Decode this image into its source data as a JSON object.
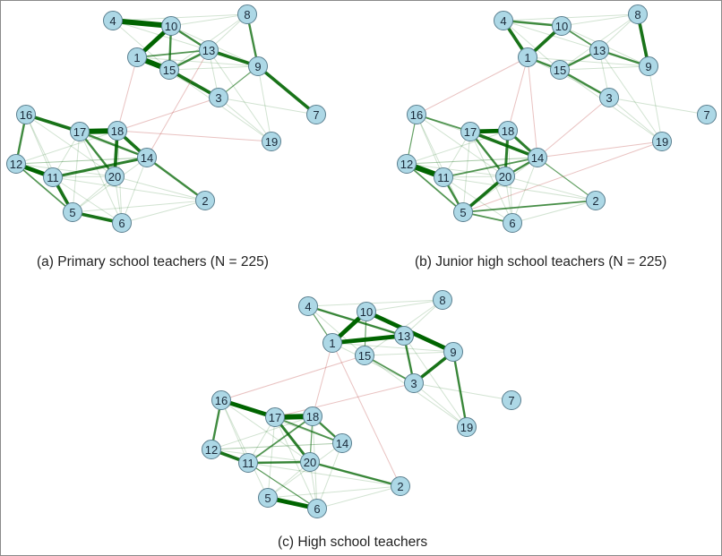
{
  "colors": {
    "node_fill": "#add8e6",
    "node_stroke": "#5a7f8f",
    "positive_edge": "#006400",
    "negative_edge": "#c0504d"
  },
  "nodes": [
    "1",
    "2",
    "3",
    "4",
    "5",
    "6",
    "7",
    "8",
    "9",
    "10",
    "11",
    "12",
    "13",
    "14",
    "15",
    "16",
    "17",
    "18",
    "19",
    "20"
  ],
  "panels": [
    {
      "caption": "(a) Primary school teachers (N = 225)",
      "edges": [
        [
          4,
          10,
          5
        ],
        [
          10,
          1,
          4
        ],
        [
          1,
          15,
          5
        ],
        [
          15,
          3,
          3
        ],
        [
          10,
          15,
          2
        ],
        [
          10,
          13,
          2
        ],
        [
          13,
          9,
          3
        ],
        [
          8,
          9,
          2
        ],
        [
          9,
          7,
          3
        ],
        [
          15,
          13,
          2
        ],
        [
          1,
          13,
          1.5
        ],
        [
          9,
          3,
          1
        ],
        [
          16,
          17,
          3
        ],
        [
          17,
          18,
          5
        ],
        [
          18,
          14,
          3
        ],
        [
          17,
          14,
          2
        ],
        [
          18,
          20,
          3
        ],
        [
          17,
          20,
          2
        ],
        [
          11,
          14,
          2.5
        ],
        [
          12,
          11,
          4
        ],
        [
          12,
          16,
          2
        ],
        [
          11,
          5,
          3
        ],
        [
          5,
          6,
          3
        ],
        [
          12,
          5,
          1.5
        ],
        [
          14,
          2,
          2
        ],
        [
          1,
          18,
          -1
        ],
        [
          3,
          18,
          -0.7
        ],
        [
          18,
          19,
          -0.7
        ],
        [
          13,
          14,
          -0.5
        ]
      ]
    },
    {
      "caption": "(b) Junior high school teachers (N = 225)",
      "edges": [
        [
          4,
          10,
          2
        ],
        [
          4,
          1,
          3
        ],
        [
          1,
          10,
          3
        ],
        [
          1,
          15,
          2
        ],
        [
          15,
          3,
          2
        ],
        [
          15,
          13,
          2
        ],
        [
          13,
          9,
          2
        ],
        [
          8,
          9,
          3
        ],
        [
          10,
          13,
          1.5
        ],
        [
          16,
          17,
          1.5
        ],
        [
          17,
          18,
          4
        ],
        [
          17,
          14,
          3
        ],
        [
          18,
          14,
          2.5
        ],
        [
          18,
          20,
          2.5
        ],
        [
          17,
          20,
          2
        ],
        [
          12,
          11,
          5
        ],
        [
          12,
          5,
          1.5
        ],
        [
          11,
          5,
          2
        ],
        [
          20,
          5,
          3
        ],
        [
          20,
          14,
          2
        ],
        [
          11,
          14,
          1.5
        ],
        [
          5,
          2,
          1.5
        ],
        [
          5,
          6,
          1.5
        ],
        [
          14,
          2,
          1
        ],
        [
          12,
          16,
          1
        ],
        [
          1,
          18,
          -1
        ],
        [
          1,
          14,
          -0.7
        ],
        [
          3,
          14,
          -0.7
        ],
        [
          19,
          5,
          -0.5
        ],
        [
          19,
          14,
          -0.5
        ],
        [
          16,
          1,
          -0.5
        ]
      ]
    },
    {
      "caption": "(c) High school teachers",
      "edges": [
        [
          10,
          1,
          4
        ],
        [
          1,
          13,
          4
        ],
        [
          10,
          9,
          4
        ],
        [
          4,
          13,
          2
        ],
        [
          13,
          3,
          2
        ],
        [
          3,
          9,
          3
        ],
        [
          9,
          19,
          2
        ],
        [
          15,
          3,
          1.5
        ],
        [
          10,
          15,
          1
        ],
        [
          4,
          1,
          1
        ],
        [
          16,
          17,
          4
        ],
        [
          17,
          18,
          5
        ],
        [
          18,
          14,
          2
        ],
        [
          17,
          14,
          1.5
        ],
        [
          17,
          20,
          2.5
        ],
        [
          18,
          11,
          1.5
        ],
        [
          18,
          20,
          1
        ],
        [
          12,
          16,
          2
        ],
        [
          12,
          11,
          3
        ],
        [
          11,
          20,
          2
        ],
        [
          20,
          2,
          2
        ],
        [
          5,
          6,
          4
        ],
        [
          11,
          6,
          1
        ],
        [
          1,
          18,
          -0.6
        ],
        [
          3,
          17,
          -0.6
        ],
        [
          16,
          15,
          -0.4
        ],
        [
          1,
          2,
          -0.4
        ]
      ]
    }
  ],
  "weak_edges": [
    [
      4,
      15
    ],
    [
      4,
      13
    ],
    [
      4,
      8
    ],
    [
      10,
      8
    ],
    [
      10,
      9
    ],
    [
      1,
      9
    ],
    [
      15,
      9
    ],
    [
      13,
      3
    ],
    [
      13,
      19
    ],
    [
      3,
      19
    ],
    [
      3,
      7
    ],
    [
      9,
      19
    ],
    [
      8,
      13
    ],
    [
      8,
      15
    ],
    [
      15,
      19
    ],
    [
      1,
      3
    ],
    [
      16,
      20
    ],
    [
      16,
      11
    ],
    [
      16,
      14
    ],
    [
      17,
      11
    ],
    [
      17,
      5
    ],
    [
      17,
      6
    ],
    [
      18,
      6
    ],
    [
      18,
      12
    ],
    [
      11,
      20
    ],
    [
      11,
      6
    ],
    [
      11,
      2
    ],
    [
      20,
      2
    ],
    [
      20,
      6
    ],
    [
      20,
      5
    ],
    [
      14,
      5
    ],
    [
      14,
      6
    ],
    [
      12,
      14
    ],
    [
      12,
      20
    ],
    [
      5,
      2
    ],
    [
      6,
      2
    ],
    [
      16,
      5
    ],
    [
      14,
      12
    ]
  ]
}
